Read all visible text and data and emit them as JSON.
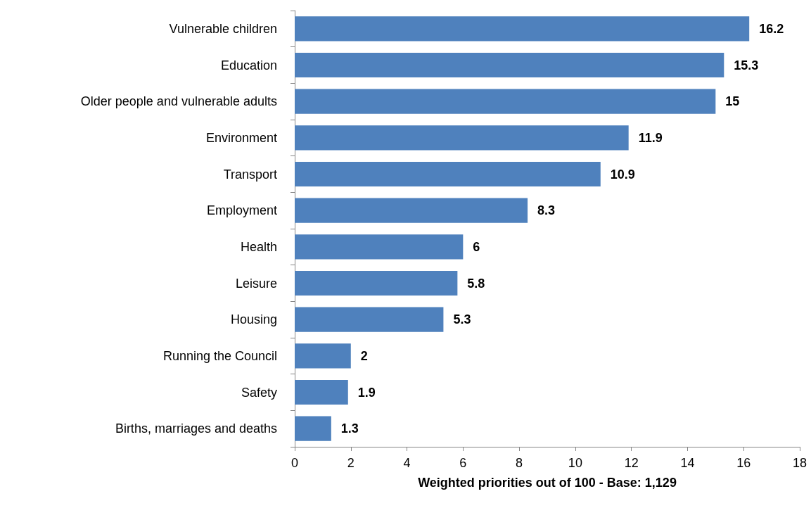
{
  "chart_data": {
    "type": "bar",
    "orientation": "horizontal",
    "xlabel": "Weighted priorities out of 100 - Base: 1,129",
    "categories": [
      "Vulnerable children",
      "Education",
      "Older people and vulnerable adults",
      "Environment",
      "Transport",
      "Employment",
      "Health",
      "Leisure",
      "Housing",
      "Running the Council",
      "Safety",
      "Births, marriages and deaths"
    ],
    "values": [
      16.2,
      15.3,
      15,
      11.9,
      10.9,
      8.3,
      6,
      5.8,
      5.3,
      2,
      1.9,
      1.3
    ],
    "color": "#4f81bd",
    "xlim": [
      0,
      18
    ],
    "xticks": [
      0,
      2,
      4,
      6,
      8,
      10,
      12,
      14,
      16,
      18
    ],
    "grid": false,
    "data_labels": true
  }
}
